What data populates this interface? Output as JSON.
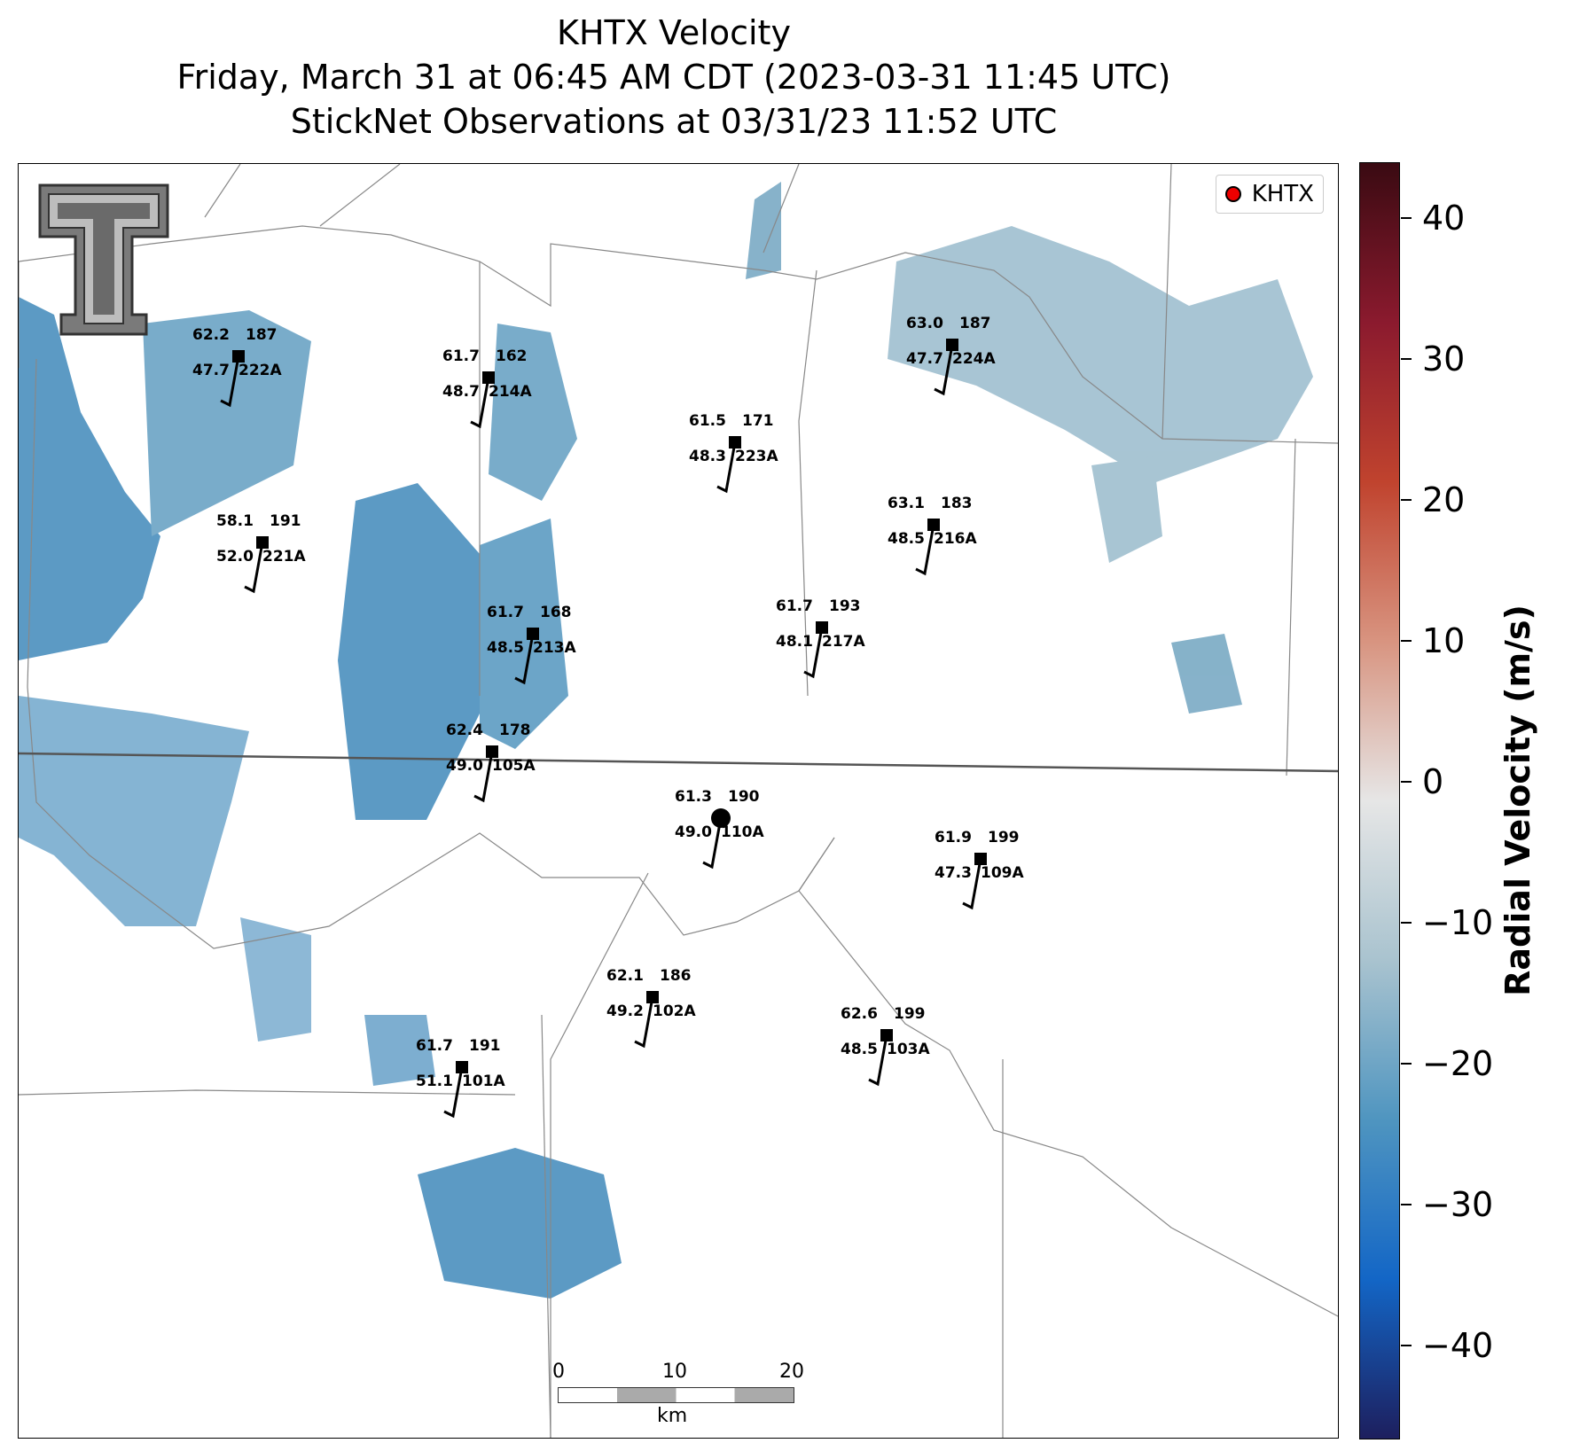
{
  "title": {
    "line1": "KHTX Velocity",
    "line2": "Friday, March 31 at 06:45 AM CDT (2023-03-31 11:45 UTC)",
    "line3": "StickNet Observations at 03/31/23 11:52 UTC"
  },
  "legend": {
    "label": "KHTX",
    "marker_color": "#e00000"
  },
  "logo": {
    "name": "texas-tech-double-t",
    "text": "T"
  },
  "observations": [
    {
      "id": "222A",
      "temp": "62.2",
      "dew": "47.7",
      "dir": "187"
    },
    {
      "id": "214A",
      "temp": "61.7",
      "dew": "48.7",
      "dir": "162"
    },
    {
      "id": "223A",
      "temp": "61.5",
      "dew": "48.3",
      "dir": "171"
    },
    {
      "id": "224A",
      "temp": "63.0",
      "dew": "47.7",
      "dir": "187"
    },
    {
      "id": "221A",
      "temp": "58.1",
      "dew": "52.0",
      "dir": "191"
    },
    {
      "id": "216A",
      "temp": "63.1",
      "dew": "48.5",
      "dir": "183"
    },
    {
      "id": "213A",
      "temp": "61.7",
      "dew": "48.5",
      "dir": "168"
    },
    {
      "id": "217A",
      "temp": "61.7",
      "dew": "48.1",
      "dir": "193"
    },
    {
      "id": "105A",
      "temp": "62.4",
      "dew": "49.0",
      "dir": "178"
    },
    {
      "id": "110A",
      "temp": "61.3",
      "dew": "49.0",
      "dir": "190"
    },
    {
      "id": "109A",
      "temp": "61.9",
      "dew": "47.3",
      "dir": "199"
    },
    {
      "id": "102A",
      "temp": "62.1",
      "dew": "49.2",
      "dir": "186"
    },
    {
      "id": "103A",
      "temp": "62.6",
      "dew": "48.5",
      "dir": "199"
    },
    {
      "id": "101A",
      "temp": "61.7",
      "dew": "51.1",
      "dir": "191"
    }
  ],
  "scalebar": {
    "ticks": [
      "0",
      "10",
      "20"
    ],
    "unit": "km"
  },
  "colorbar": {
    "label": "Radial Velocity (m/s)",
    "ticks": [
      "40",
      "30",
      "20",
      "10",
      "0",
      "−10",
      "−20",
      "−30",
      "−40"
    ],
    "stops": [
      "#3a0a12",
      "#8b1a2e",
      "#c0432e",
      "#d89480",
      "#e6e6e6",
      "#a9c3cf",
      "#4f95c0",
      "#1366c6",
      "#1d1f5e"
    ],
    "range": [
      -45,
      45
    ]
  },
  "colors": {
    "temp": "#b00000",
    "dew": "#1a6b1a",
    "velocity_inbound": "#4a8fbe",
    "velocity_light": "#9fbfcf"
  }
}
